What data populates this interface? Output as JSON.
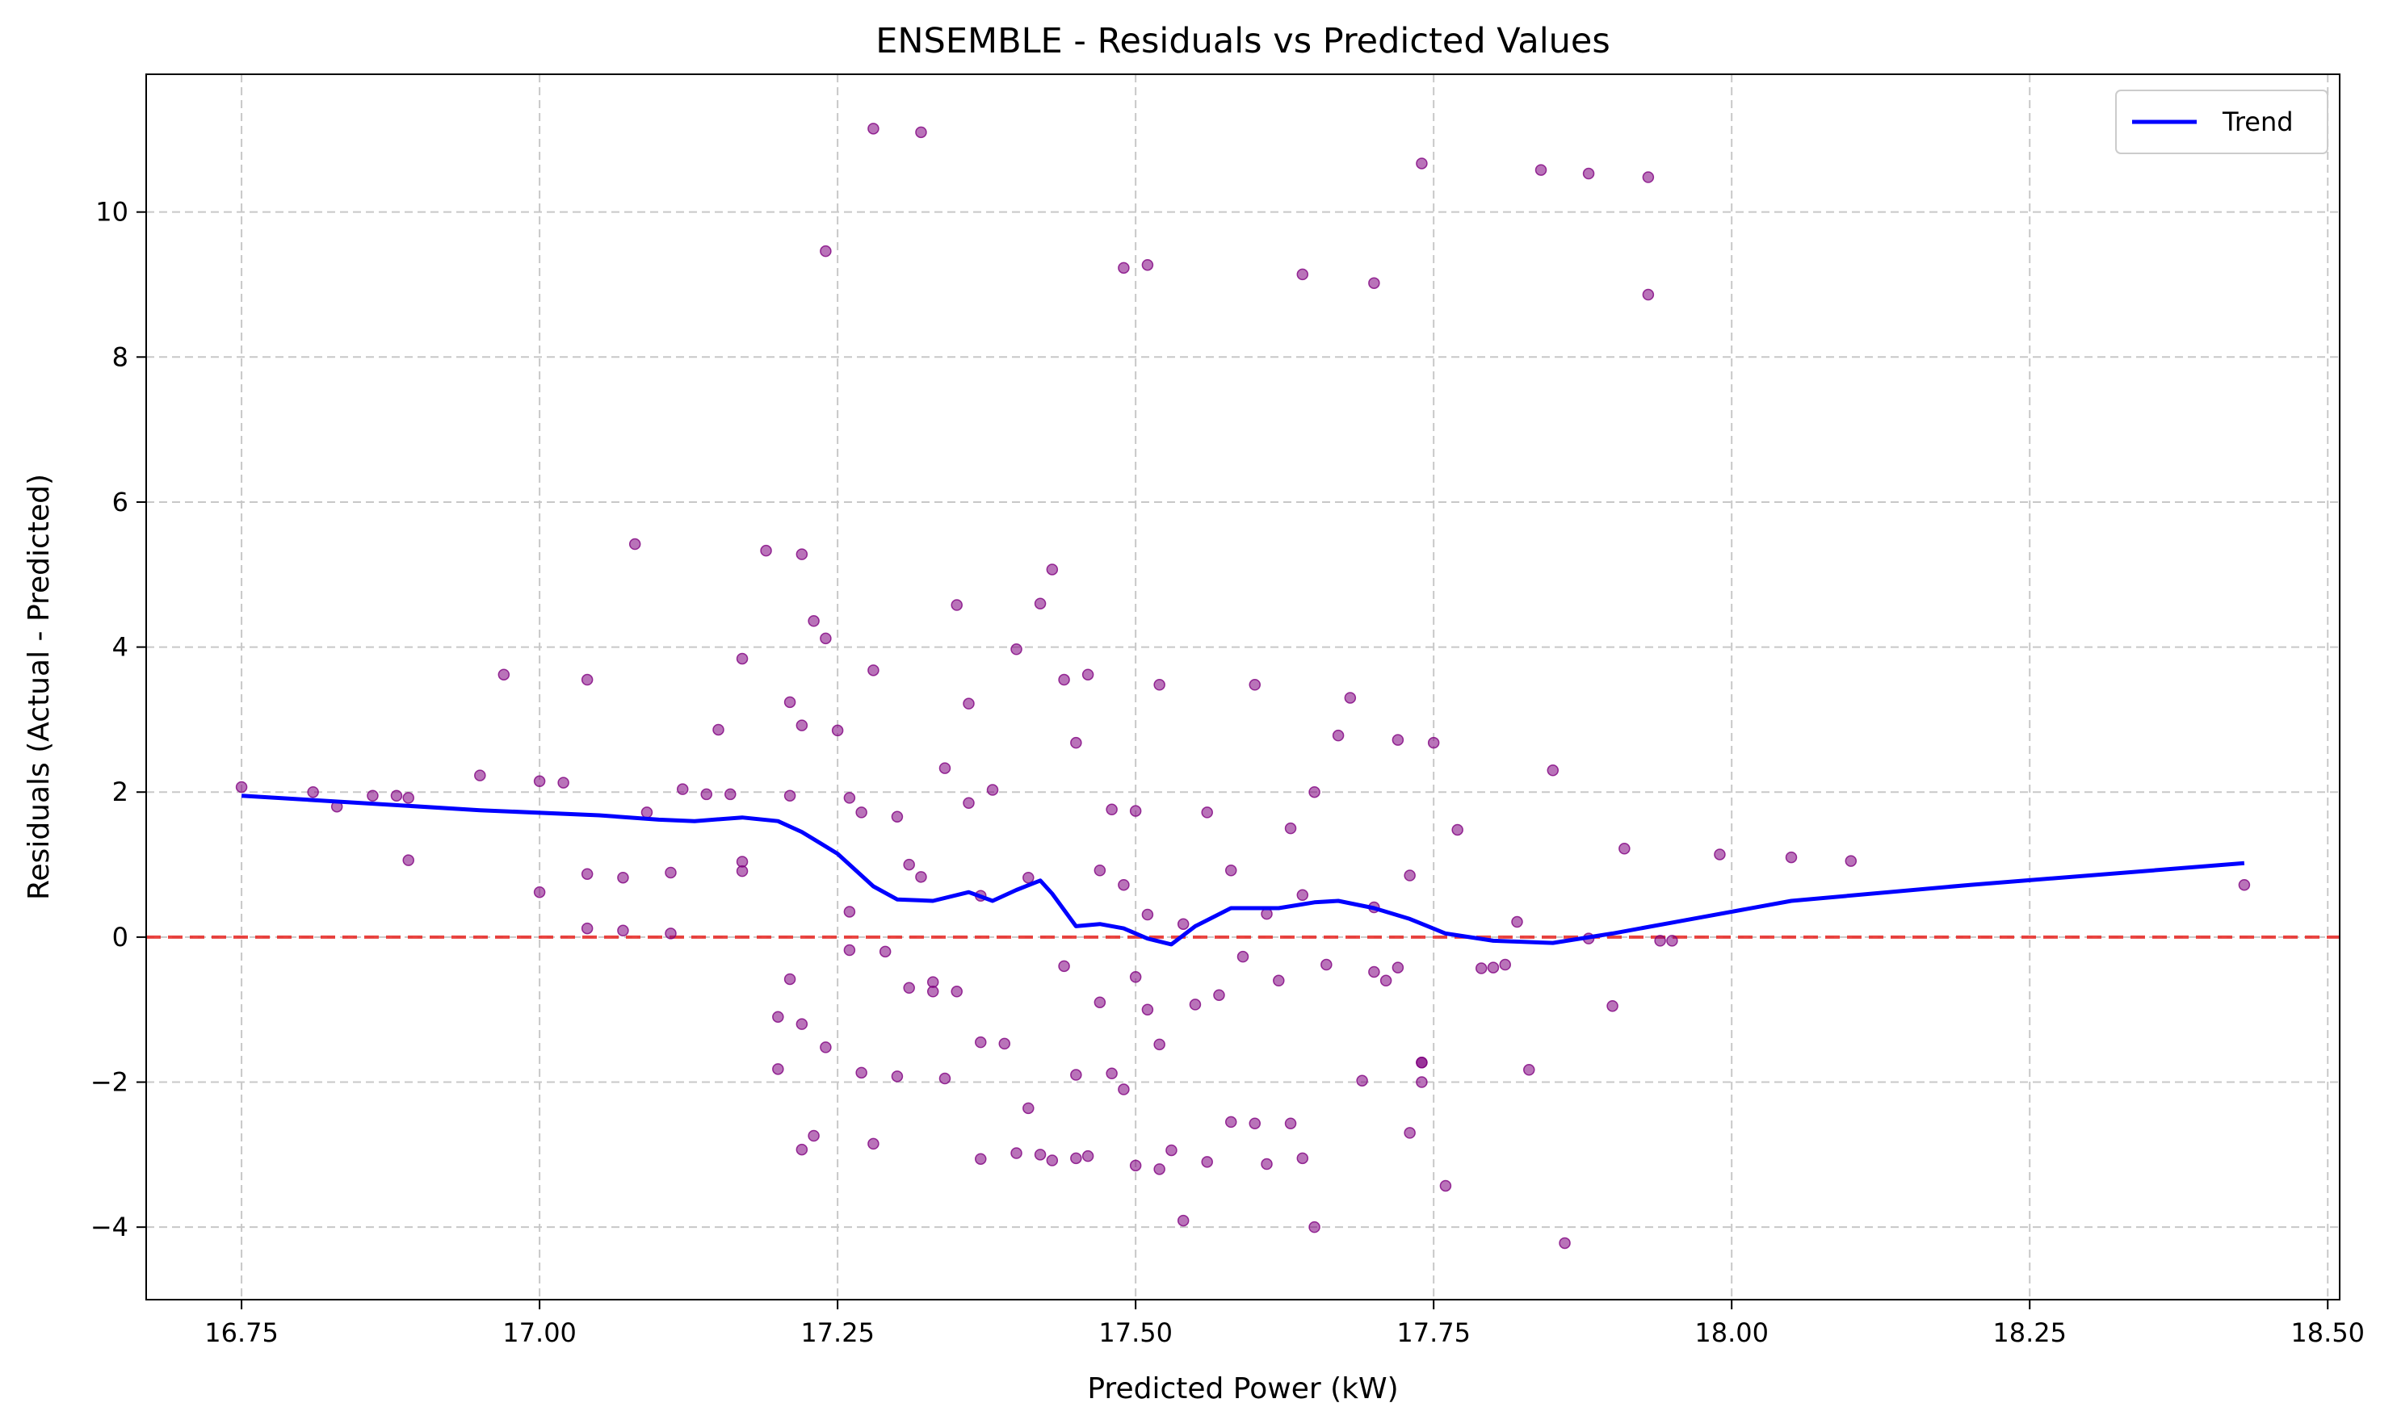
{
  "chart_data": {
    "type": "scatter",
    "title": "ENSEMBLE - Residuals vs Predicted Values",
    "xlabel": "Predicted Power (kW)",
    "ylabel": "Residuals (Actual - Predicted)",
    "xlim": [
      16.67,
      18.51
    ],
    "ylim": [
      -5.0,
      11.9
    ],
    "xticks": [
      16.75,
      17.0,
      17.25,
      17.5,
      17.75,
      18.0,
      18.25,
      18.5
    ],
    "xtick_labels": [
      "16.75",
      "17.00",
      "17.25",
      "17.50",
      "17.75",
      "18.00",
      "18.25",
      "18.50"
    ],
    "yticks": [
      -4,
      -2,
      0,
      2,
      4,
      6,
      8,
      10
    ],
    "ytick_labels": [
      "−4",
      "−2",
      "0",
      "2",
      "4",
      "6",
      "8",
      "10"
    ],
    "grid": true,
    "legend": {
      "placement": "top-right",
      "entries": [
        "Trend"
      ]
    },
    "colors": {
      "points": "#800080",
      "trend": "#0000ff",
      "zero_line": "#e8302c",
      "grid": "#c8c8c8"
    },
    "reference_line": {
      "y": 0,
      "style": "dashed"
    },
    "series": [
      {
        "kind": "scatter",
        "x": [
          16.75,
          16.81,
          16.83,
          16.86,
          16.88,
          16.89,
          16.89,
          16.95,
          16.97,
          17.0,
          17.0,
          17.04,
          17.02,
          17.04,
          17.04,
          17.07,
          17.07,
          17.08,
          17.09,
          17.11,
          17.11,
          17.12,
          17.14,
          17.15,
          17.16,
          17.17,
          17.17,
          17.19,
          17.17,
          17.21,
          17.21,
          17.22,
          17.22,
          17.23,
          17.24,
          17.25,
          17.26,
          17.26,
          17.27,
          17.28,
          17.3,
          17.31,
          17.32,
          17.34,
          17.35,
          17.36,
          17.36,
          17.37,
          17.38,
          17.4,
          17.41,
          17.42,
          17.43,
          17.44,
          17.45,
          17.46,
          17.47,
          17.48,
          17.49,
          17.5,
          17.51,
          17.52,
          17.54,
          17.56,
          17.58,
          17.6,
          17.61,
          17.63,
          17.64,
          17.65,
          17.67,
          17.68,
          17.7,
          17.72,
          17.73,
          17.75,
          17.77,
          17.8,
          17.82,
          17.85,
          17.88,
          17.91,
          17.94,
          17.99,
          18.05,
          18.1,
          18.43,
          17.21,
          17.24,
          17.29,
          17.33,
          17.39,
          17.44,
          17.47,
          17.5,
          17.52,
          17.55,
          17.59,
          17.62,
          17.66,
          17.71,
          17.74,
          17.79,
          17.83,
          17.9,
          17.2,
          17.23,
          17.27,
          17.3,
          17.34,
          17.37,
          17.41,
          17.45,
          17.48,
          17.51,
          17.53,
          17.57,
          17.6,
          17.64,
          17.69,
          17.73,
          17.76,
          17.81,
          17.86,
          17.95,
          17.22,
          17.26,
          17.31,
          17.35,
          17.4,
          17.43,
          17.46,
          17.49,
          17.52,
          17.56,
          17.61,
          17.65,
          17.72,
          17.74,
          17.2,
          17.22,
          17.28,
          17.33,
          17.37,
          17.42,
          17.45,
          17.5,
          17.54,
          17.58,
          17.63,
          17.7,
          17.74,
          17.28,
          17.32,
          17.24,
          17.49,
          17.51,
          17.64,
          17.7,
          17.74,
          17.84,
          17.88,
          17.93,
          17.93
        ],
        "y": [
          2.07,
          2.0,
          1.8,
          1.95,
          1.95,
          1.06,
          1.92,
          2.23,
          3.62,
          2.15,
          0.62,
          3.55,
          2.13,
          0.87,
          0.12,
          0.82,
          0.09,
          5.42,
          1.72,
          0.89,
          0.05,
          2.04,
          1.97,
          2.86,
          1.97,
          0.91,
          1.04,
          5.33,
          3.84,
          3.24,
          1.95,
          2.92,
          5.28,
          4.36,
          4.12,
          2.85,
          1.92,
          0.35,
          1.72,
          3.68,
          1.66,
          1.0,
          0.83,
          2.33,
          4.58,
          3.22,
          1.85,
          0.57,
          2.03,
          3.97,
          0.82,
          4.6,
          5.07,
          3.55,
          2.68,
          3.62,
          0.92,
          1.76,
          0.72,
          1.74,
          0.31,
          3.48,
          0.18,
          1.72,
          0.92,
          3.48,
          0.32,
          1.5,
          0.58,
          2.0,
          2.78,
          3.3,
          0.41,
          2.72,
          0.85,
          2.68,
          1.48,
          -0.42,
          0.21,
          2.3,
          -0.02,
          1.22,
          -0.05,
          1.14,
          1.1,
          1.05,
          0.72,
          -0.58,
          -1.52,
          -0.2,
          -0.62,
          -1.47,
          -0.4,
          -0.9,
          -0.55,
          -1.48,
          -0.93,
          -0.27,
          -0.6,
          -0.38,
          -0.6,
          -1.73,
          -0.43,
          -1.83,
          -0.95,
          -1.82,
          -2.74,
          -1.87,
          -1.92,
          -1.95,
          -1.45,
          -2.36,
          -1.9,
          -1.88,
          -1.0,
          -2.94,
          -0.8,
          -2.57,
          -3.05,
          -1.98,
          -2.7,
          -3.43,
          -0.38,
          -4.22,
          -0.05,
          -2.93,
          -0.18,
          -0.7,
          -0.75,
          -2.98,
          -3.08,
          -3.02,
          -2.1,
          -3.2,
          -3.1,
          -3.13,
          -4.0,
          -0.42,
          -1.73,
          -1.1,
          -1.2,
          -2.85,
          -0.75,
          -3.06,
          -3.0,
          -3.05,
          -3.15,
          -3.91,
          -2.55,
          -2.57,
          -0.48,
          -2.0,
          11.15,
          11.1,
          9.46,
          9.23,
          9.27,
          9.14,
          9.02,
          10.67,
          10.58,
          10.53,
          10.48,
          8.86
        ]
      }
    ],
    "trend": {
      "name": "Trend",
      "x": [
        16.75,
        16.85,
        16.95,
        17.05,
        17.1,
        17.13,
        17.17,
        17.2,
        17.22,
        17.25,
        17.28,
        17.3,
        17.33,
        17.36,
        17.38,
        17.4,
        17.42,
        17.43,
        17.45,
        17.47,
        17.49,
        17.51,
        17.53,
        17.55,
        17.58,
        17.62,
        17.65,
        17.67,
        17.7,
        17.73,
        17.76,
        17.8,
        17.85,
        17.9,
        17.95,
        18.05,
        18.2,
        18.43
      ],
      "y": [
        1.95,
        1.85,
        1.75,
        1.68,
        1.62,
        1.6,
        1.65,
        1.6,
        1.45,
        1.15,
        0.7,
        0.52,
        0.5,
        0.62,
        0.5,
        0.65,
        0.78,
        0.6,
        0.15,
        0.18,
        0.12,
        -0.02,
        -0.1,
        0.15,
        0.4,
        0.4,
        0.48,
        0.5,
        0.4,
        0.25,
        0.05,
        -0.05,
        -0.08,
        0.05,
        0.2,
        0.5,
        0.72,
        1.02
      ]
    }
  }
}
